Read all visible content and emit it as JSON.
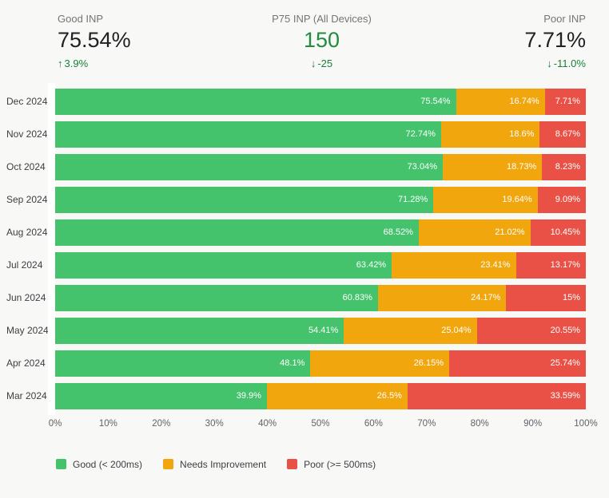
{
  "stats": [
    {
      "label": "Good INP",
      "value": "75.54%",
      "delta": "3.9%",
      "direction": "up",
      "value_color": "#202124",
      "delta_color": "#188038"
    },
    {
      "label": "P75 INP (All Devices)",
      "value": "150",
      "delta": "-25",
      "direction": "down",
      "value_color": "#1e8e3e",
      "delta_color": "#188038"
    },
    {
      "label": "Poor INP",
      "value": "7.71%",
      "delta": "-11.0%",
      "direction": "down",
      "value_color": "#202124",
      "delta_color": "#188038"
    }
  ],
  "chart_data": {
    "type": "bar",
    "orientation": "horizontal",
    "stacked": true,
    "categories": [
      "Dec 2024",
      "Nov 2024",
      "Oct 2024",
      "Sep 2024",
      "Aug 2024",
      "Jul 2024",
      "Jun 2024",
      "May 2024",
      "Apr 2024",
      "Mar 2024"
    ],
    "series": [
      {
        "key": "good",
        "name": "Good (< 200ms)",
        "color": "#45c36c",
        "values": [
          75.54,
          72.74,
          73.04,
          71.28,
          68.52,
          63.42,
          60.83,
          54.41,
          48.1,
          39.9
        ],
        "labels": [
          "75.54%",
          "72.74%",
          "73.04%",
          "71.28%",
          "68.52%",
          "63.42%",
          "60.83%",
          "54.41%",
          "48.1%",
          "39.9%"
        ]
      },
      {
        "key": "needs-improvement",
        "name": "Needs Improvement",
        "color": "#f2a60d",
        "values": [
          16.74,
          18.6,
          18.73,
          19.64,
          21.02,
          23.41,
          24.17,
          25.04,
          26.15,
          26.5
        ],
        "labels": [
          "16.74%",
          "18.6%",
          "18.73%",
          "19.64%",
          "21.02%",
          "23.41%",
          "24.17%",
          "25.04%",
          "26.15%",
          "26.5%"
        ]
      },
      {
        "key": "poor",
        "name": "Poor (>= 500ms)",
        "color": "#e95146",
        "values": [
          7.71,
          8.67,
          8.23,
          9.09,
          10.45,
          13.17,
          15,
          20.55,
          25.74,
          33.59
        ],
        "labels": [
          "7.71%",
          "8.67%",
          "8.23%",
          "9.09%",
          "10.45%",
          "13.17%",
          "15%",
          "20.55%",
          "25.74%",
          "33.59%"
        ]
      }
    ],
    "x_ticks": [
      "0%",
      "10%",
      "20%",
      "30%",
      "40%",
      "50%",
      "60%",
      "70%",
      "80%",
      "90%",
      "100%"
    ],
    "xlim": [
      0,
      100
    ],
    "grid": false,
    "legend_position": "bottom"
  }
}
